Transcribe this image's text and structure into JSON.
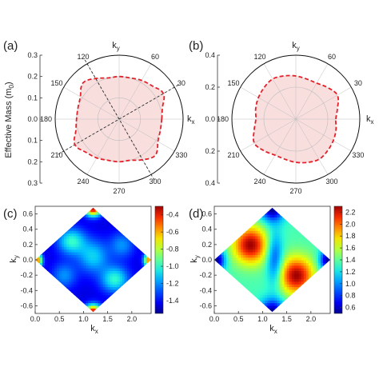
{
  "colors": {
    "dash": "#e3202a",
    "fill": "#f9dede",
    "ring": "#bdbdbd",
    "jet": [
      "#00008f",
      "#0000ff",
      "#0060ff",
      "#00c0ff",
      "#30ffd0",
      "#90ff60",
      "#f0ff00",
      "#ffa000",
      "#ff3000",
      "#a00000"
    ]
  },
  "chart_data": [
    {
      "type": "polar",
      "panel_label": "(a)",
      "radial_axis_label": "Effective Mass (m",
      "radial_axis_label_sub": "0",
      "radial_axis_label_end": ")",
      "radial_ticks": [
        "0.3",
        "0.2",
        "0.1",
        "0.0",
        "0.1",
        "0.2",
        "0.3"
      ],
      "rlim": [
        0,
        0.3
      ],
      "angle_ticks": [
        "0",
        "30",
        "60",
        "90",
        "120",
        "150",
        "180",
        "210",
        "240",
        "270",
        "300",
        "330"
      ],
      "angle_tick_labels_shown": [
        "30",
        "60",
        "120",
        "150",
        "180",
        "210",
        "240",
        "270",
        "300",
        "330"
      ],
      "ky_label": "k",
      "ky_sub": "y",
      "kx_label": "k",
      "kx_sub": "x",
      "dashed_lines_deg": [
        30,
        120
      ],
      "series": [
        {
          "angles_deg": [
            0,
            15,
            30,
            45,
            60,
            75,
            90,
            105,
            120,
            135,
            150,
            165,
            180,
            195,
            210,
            225,
            240,
            255,
            270,
            285,
            300,
            315,
            330,
            345
          ],
          "r": [
            0.2,
            0.21,
            0.24,
            0.22,
            0.21,
            0.2,
            0.2,
            0.2,
            0.22,
            0.24,
            0.21,
            0.2,
            0.2,
            0.21,
            0.24,
            0.22,
            0.21,
            0.2,
            0.2,
            0.2,
            0.22,
            0.24,
            0.21,
            0.2
          ]
        }
      ]
    },
    {
      "type": "polar",
      "panel_label": "(b)",
      "radial_ticks": [
        "0.4",
        "0.2",
        "0.0",
        "0.2",
        "0.4"
      ],
      "rlim": [
        0,
        0.4
      ],
      "angle_ticks": [
        "0",
        "30",
        "60",
        "90",
        "120",
        "150",
        "180",
        "210",
        "240",
        "270",
        "300",
        "330"
      ],
      "angle_tick_labels_shown": [
        "30",
        "60",
        "120",
        "150",
        "180",
        "210",
        "240",
        "270",
        "300",
        "330"
      ],
      "ky_label": "k",
      "ky_sub": "y",
      "kx_label": "k",
      "kx_sub": "x",
      "series": [
        {
          "angles_deg": [
            0,
            15,
            30,
            45,
            60,
            75,
            90,
            105,
            120,
            135,
            150,
            165,
            180,
            195,
            210,
            225,
            240,
            255,
            270,
            285,
            300,
            315,
            330,
            345
          ],
          "r": [
            0.25,
            0.27,
            0.3,
            0.28,
            0.26,
            0.26,
            0.27,
            0.28,
            0.29,
            0.28,
            0.27,
            0.26,
            0.25,
            0.27,
            0.3,
            0.28,
            0.26,
            0.26,
            0.27,
            0.28,
            0.29,
            0.28,
            0.27,
            0.26
          ]
        }
      ]
    },
    {
      "type": "heatmap",
      "panel_label": "(c)",
      "xlabel": "k",
      "xlabel_sub": "x",
      "ylabel": "k",
      "ylabel_sub": "y",
      "xlim": [
        0,
        2.4
      ],
      "ylim": [
        -0.7,
        0.7
      ],
      "x_ticks": [
        "0.0",
        "0.5",
        "1.0",
        "1.5",
        "2.0"
      ],
      "y_ticks": [
        "0.6",
        "0.4",
        "0.2",
        "0.0",
        "-0.2",
        "-0.4",
        "-0.6"
      ],
      "colorbar_ticks": [
        "-0.4",
        "-0.6",
        "-0.8",
        "-1.0",
        "-1.2",
        "-1.4"
      ],
      "colorbar_range": [
        -1.55,
        -0.3
      ],
      "region": "rhombus with vertices (0,0), (1.2,0.68), (2.4,0), (1.2,-0.68)"
    },
    {
      "type": "heatmap",
      "panel_label": "(d)",
      "xlabel": "k",
      "xlabel_sub": "x",
      "ylabel": "k",
      "ylabel_sub": "y",
      "xlim": [
        0,
        2.4
      ],
      "ylim": [
        -0.7,
        0.7
      ],
      "x_ticks": [
        "0.0",
        "0.5",
        "1.0",
        "1.5",
        "2.0"
      ],
      "y_ticks": [
        "0.6",
        "0.4",
        "0.2",
        "0.0",
        "-0.2",
        "-0.4",
        "-0.6"
      ],
      "colorbar_ticks": [
        "2.2",
        "2.0",
        "1.8",
        "1.6",
        "1.4",
        "1.2",
        "1.0",
        "0.8",
        "0.6"
      ],
      "colorbar_range": [
        0.5,
        2.3
      ],
      "region": "rhombus with vertices (0,0), (1.2,0.68), (2.4,0), (1.2,-0.68)"
    }
  ]
}
